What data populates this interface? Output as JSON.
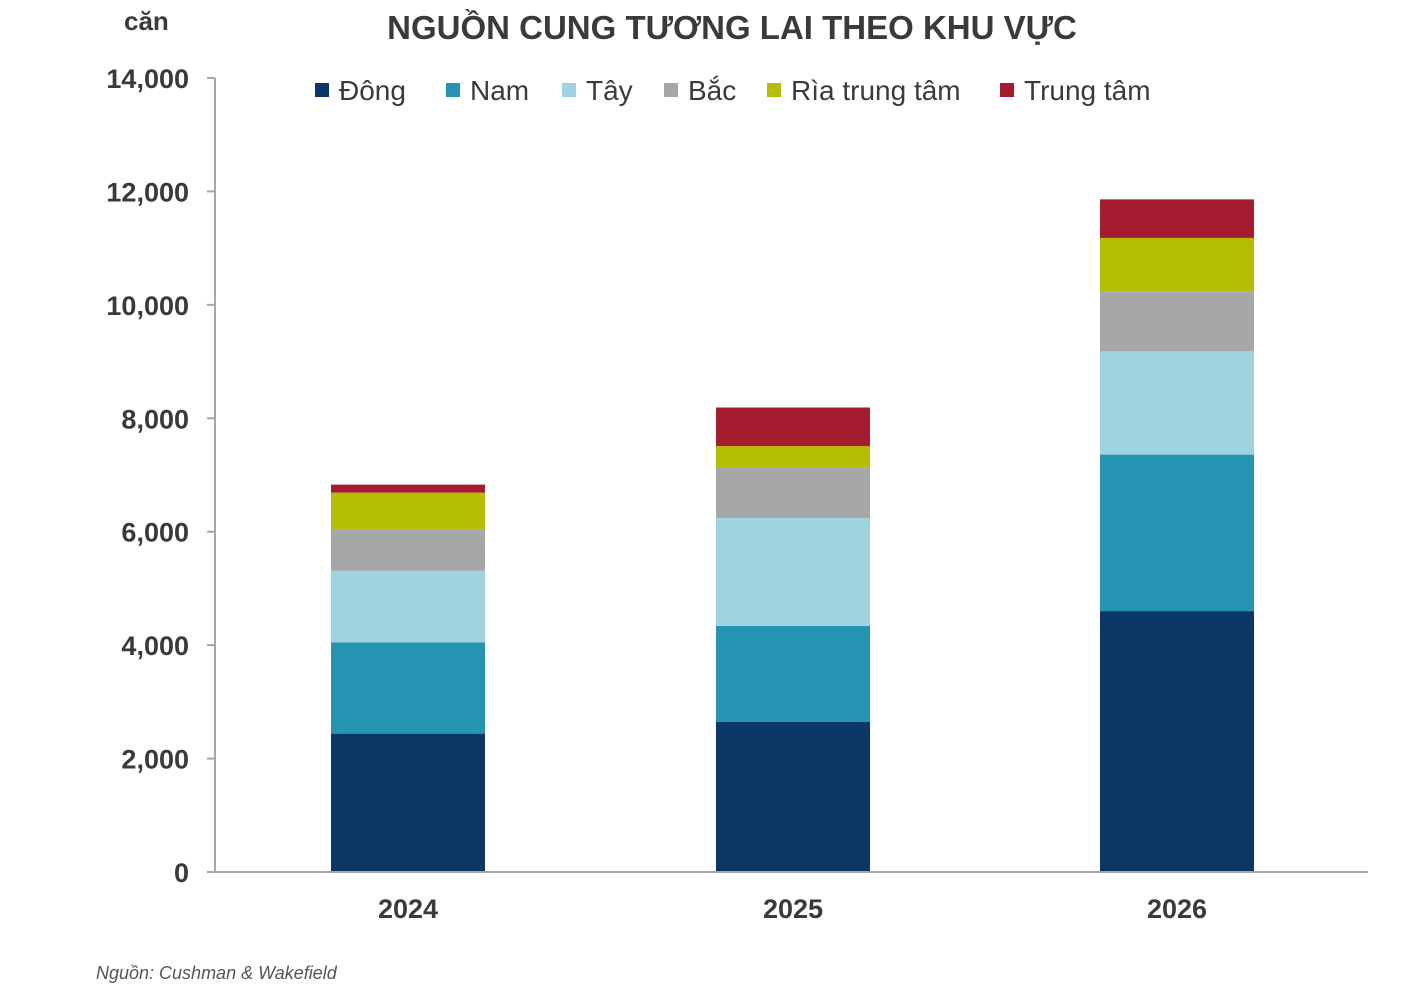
{
  "chart_data": {
    "type": "bar",
    "stacked": true,
    "title": "NGUỒN CUNG TƯƠNG LAI THEO KHU VỰC",
    "ylabel": "căn",
    "xlabel": "",
    "ylim": [
      0,
      14000
    ],
    "yticks": [
      0,
      2000,
      4000,
      6000,
      8000,
      10000,
      12000,
      14000
    ],
    "ytick_labels": [
      "0",
      "2,000",
      "4,000",
      "6,000",
      "8,000",
      "10,000",
      "12,000",
      "14,000"
    ],
    "categories": [
      "2024",
      "2025",
      "2026"
    ],
    "grid": false,
    "legend_position": "top",
    "series": [
      {
        "name": "Đông",
        "color": "#0a3766",
        "values": [
          2440,
          2650,
          4600
        ]
      },
      {
        "name": "Nam",
        "color": "#2494b2",
        "values": [
          1610,
          1690,
          2760
        ]
      },
      {
        "name": "Tây",
        "color": "#9ed4e0",
        "values": [
          1260,
          1900,
          1820
        ]
      },
      {
        "name": "Bắc",
        "color": "#a6a7a9",
        "values": [
          740,
          890,
          1060
        ]
      },
      {
        "name": "Rìa trung tâm",
        "color": "#b5bd00",
        "values": [
          640,
          380,
          940
        ]
      },
      {
        "name": "Trung tâm",
        "color": "#a51c30",
        "values": [
          140,
          680,
          680
        ]
      }
    ]
  },
  "source_note": "Nguồn: Cushman & Wakefield"
}
